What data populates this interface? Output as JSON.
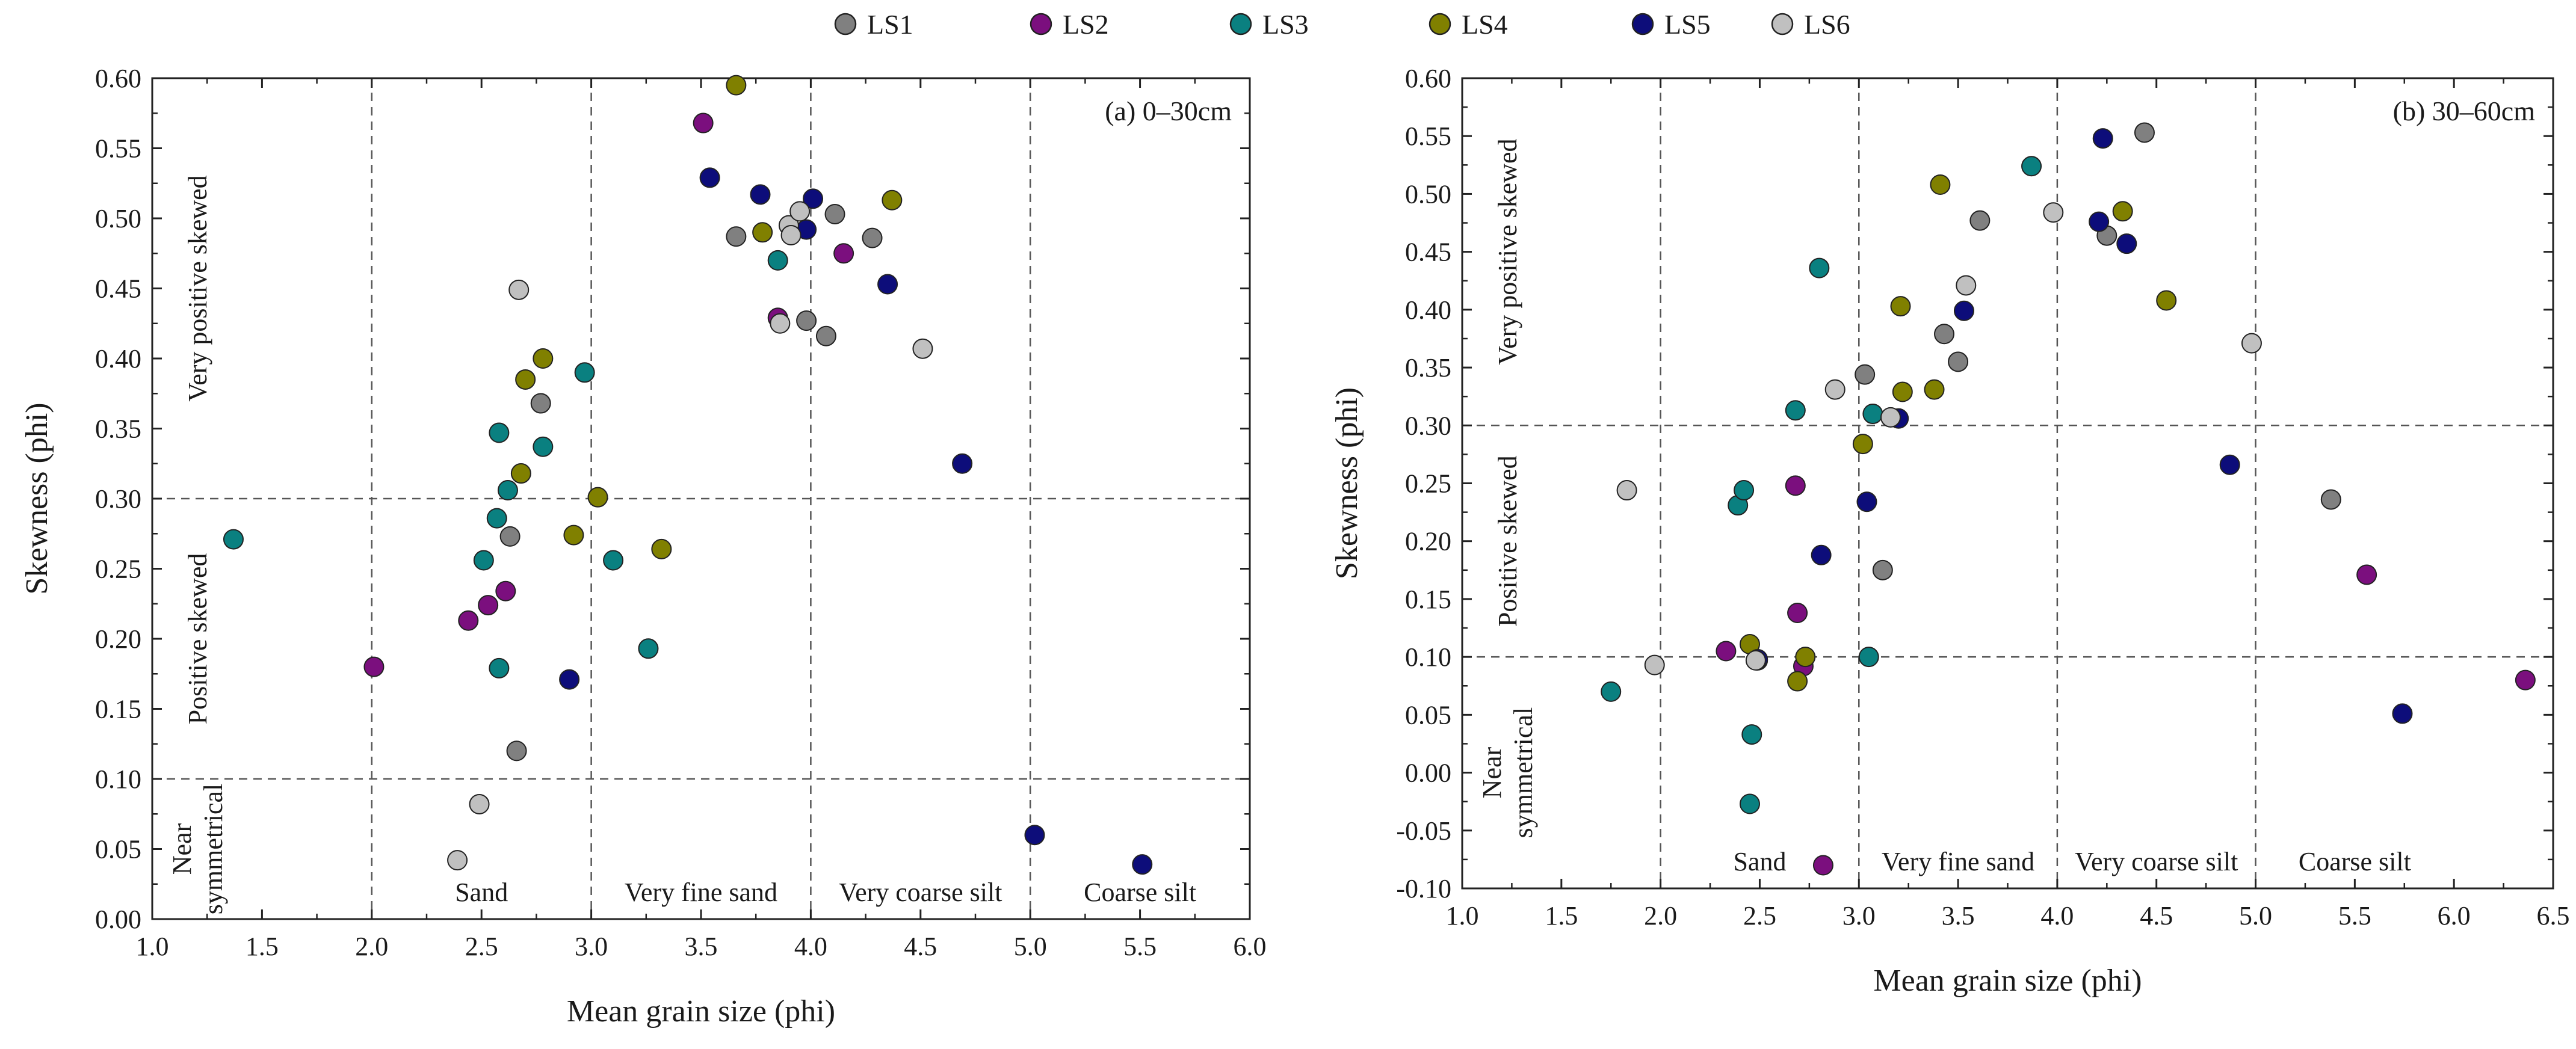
{
  "chart_data": {
    "type": "scatter",
    "legend": {
      "placement": "top-center",
      "entries": [
        {
          "name": "LS1",
          "color": "#808080"
        },
        {
          "name": "LS2",
          "color": "#7b0f7e"
        },
        {
          "name": "LS3",
          "color": "#0a8080"
        },
        {
          "name": "LS4",
          "color": "#808000"
        },
        {
          "name": "LS5",
          "color": "#0d0d7a"
        },
        {
          "name": "LS6",
          "color": "#c0c0c0"
        }
      ]
    },
    "panels": [
      {
        "id": "a",
        "label": "(a) 0–30cm",
        "xlabel": "Mean grain size (phi)",
        "ylabel": "Skewness (phi)",
        "xlim": [
          1.0,
          6.0
        ],
        "ylim": [
          0.0,
          0.6
        ],
        "xticks": [
          1.0,
          1.5,
          2.0,
          2.5,
          3.0,
          3.5,
          4.0,
          4.5,
          5.0,
          5.5,
          6.0
        ],
        "yticks": [
          0.0,
          0.05,
          0.1,
          0.15,
          0.2,
          0.25,
          0.3,
          0.35,
          0.4,
          0.45,
          0.5,
          0.55,
          0.6
        ],
        "x_tick_labels": [
          "1.0",
          "1.5",
          "2.0",
          "2.5",
          "3.0",
          "3.5",
          "4.0",
          "4.5",
          "5.0",
          "5.5",
          "6.0"
        ],
        "y_tick_labels": [
          "0.00",
          "0.05",
          "0.10",
          "0.15",
          "0.20",
          "0.25",
          "0.30",
          "0.35",
          "0.40",
          "0.45",
          "0.50",
          "0.55",
          "0.60"
        ],
        "vlines": [
          2.0,
          3.0,
          4.0,
          5.0
        ],
        "hlines": [
          0.1,
          0.3
        ],
        "x_region_labels": [
          {
            "text": "Sand",
            "x": 2.5
          },
          {
            "text": "Very fine sand",
            "x": 3.5
          },
          {
            "text": "Very coarse silt",
            "x": 4.5
          },
          {
            "text": "Coarse silt",
            "x": 5.5
          }
        ],
        "y_region_labels": [
          {
            "lines": [
              "Very positive skewed"
            ],
            "y": 0.45
          },
          {
            "lines": [
              "Positive skewed"
            ],
            "y": 0.2
          },
          {
            "lines": [
              "Near",
              "symmetrical"
            ],
            "y": 0.05
          }
        ],
        "series": [
          {
            "name": "LS1",
            "points": [
              [
                2.63,
                0.273
              ],
              [
                2.66,
                0.12
              ],
              [
                2.77,
                0.368
              ],
              [
                3.66,
                0.487
              ],
              [
                3.98,
                0.427
              ],
              [
                4.07,
                0.416
              ],
              [
                4.11,
                0.503
              ],
              [
                4.28,
                0.486
              ]
            ]
          },
          {
            "name": "LS2",
            "points": [
              [
                2.01,
                0.18
              ],
              [
                2.44,
                0.213
              ],
              [
                2.53,
                0.224
              ],
              [
                2.61,
                0.234
              ],
              [
                3.51,
                0.568
              ],
              [
                3.85,
                0.429
              ],
              [
                4.15,
                0.475
              ]
            ]
          },
          {
            "name": "LS3",
            "points": [
              [
                1.37,
                0.271
              ],
              [
                2.51,
                0.256
              ],
              [
                2.57,
                0.286
              ],
              [
                2.58,
                0.347
              ],
              [
                2.58,
                0.179
              ],
              [
                2.62,
                0.306
              ],
              [
                2.78,
                0.337
              ],
              [
                2.97,
                0.39
              ],
              [
                3.1,
                0.256
              ],
              [
                3.26,
                0.193
              ],
              [
                3.85,
                0.47
              ]
            ]
          },
          {
            "name": "LS4",
            "points": [
              [
                2.68,
                0.318
              ],
              [
                2.7,
                0.385
              ],
              [
                2.78,
                0.4
              ],
              [
                2.92,
                0.274
              ],
              [
                3.03,
                0.301
              ],
              [
                3.32,
                0.264
              ],
              [
                3.66,
                0.595
              ],
              [
                3.78,
                0.49
              ],
              [
                4.37,
                0.513
              ]
            ]
          },
          {
            "name": "LS5",
            "points": [
              [
                2.9,
                0.171
              ],
              [
                3.54,
                0.529
              ],
              [
                3.77,
                0.517
              ],
              [
                3.98,
                0.492
              ],
              [
                4.01,
                0.514
              ],
              [
                4.35,
                0.453
              ],
              [
                4.69,
                0.325
              ],
              [
                5.02,
                0.06
              ],
              [
                5.51,
                0.039
              ]
            ]
          },
          {
            "name": "LS6",
            "points": [
              [
                2.39,
                0.042
              ],
              [
                2.49,
                0.082
              ],
              [
                2.67,
                0.449
              ],
              [
                3.86,
                0.425
              ],
              [
                3.9,
                0.495
              ],
              [
                3.91,
                0.488
              ],
              [
                3.95,
                0.505
              ],
              [
                4.51,
                0.407
              ]
            ]
          }
        ]
      },
      {
        "id": "b",
        "label": "(b) 30–60cm",
        "xlabel": "Mean grain size (phi)",
        "ylabel": "Skewness (phi)",
        "xlim": [
          1.0,
          6.5
        ],
        "ylim": [
          -0.1,
          0.6
        ],
        "xticks": [
          1.0,
          1.5,
          2.0,
          2.5,
          3.0,
          3.5,
          4.0,
          4.5,
          5.0,
          5.5,
          6.0,
          6.5
        ],
        "yticks": [
          -0.1,
          -0.05,
          0.0,
          0.05,
          0.1,
          0.15,
          0.2,
          0.25,
          0.3,
          0.35,
          0.4,
          0.45,
          0.5,
          0.55,
          0.6
        ],
        "x_tick_labels": [
          "1.0",
          "1.5",
          "2.0",
          "2.5",
          "3.0",
          "3.5",
          "4.0",
          "4.5",
          "5.0",
          "5.5",
          "6.0",
          "6.5"
        ],
        "y_tick_labels": [
          "-0.10",
          "-0.05",
          "0.00",
          "0.05",
          "0.10",
          "0.15",
          "0.20",
          "0.25",
          "0.30",
          "0.35",
          "0.40",
          "0.45",
          "0.50",
          "0.55",
          "0.60"
        ],
        "vlines": [
          2.0,
          3.0,
          4.0,
          5.0
        ],
        "hlines": [
          -0.1,
          0.1,
          0.3
        ],
        "x_region_labels": [
          {
            "text": "Sand",
            "x": 2.5
          },
          {
            "text": "Very fine sand",
            "x": 3.5
          },
          {
            "text": "Very coarse silt",
            "x": 4.5
          },
          {
            "text": "Coarse silt",
            "x": 5.5
          }
        ],
        "y_region_labels": [
          {
            "lines": [
              "Very positive skewed"
            ],
            "y": 0.45
          },
          {
            "lines": [
              "Positive skewed"
            ],
            "y": 0.2
          },
          {
            "lines": [
              "Near",
              "symmetrical"
            ],
            "y": 0.0
          }
        ],
        "series": [
          {
            "name": "LS1",
            "points": [
              [
                3.03,
                0.344
              ],
              [
                3.12,
                0.175
              ],
              [
                3.43,
                0.379
              ],
              [
                3.5,
                0.355
              ],
              [
                3.61,
                0.477
              ],
              [
                4.25,
                0.464
              ],
              [
                4.44,
                0.553
              ],
              [
                5.38,
                0.236
              ]
            ]
          },
          {
            "name": "LS2",
            "points": [
              [
                2.33,
                0.105
              ],
              [
                2.68,
                0.248
              ],
              [
                2.69,
                0.138
              ],
              [
                2.72,
                0.092
              ],
              [
                2.82,
                -0.08
              ],
              [
                5.56,
                0.171
              ],
              [
                6.36,
                0.08
              ]
            ]
          },
          {
            "name": "LS3",
            "points": [
              [
                1.75,
                0.07
              ],
              [
                2.39,
                0.231
              ],
              [
                2.42,
                0.244
              ],
              [
                2.45,
                -0.027
              ],
              [
                2.46,
                0.033
              ],
              [
                2.49,
                0.097
              ],
              [
                2.68,
                0.313
              ],
              [
                2.8,
                0.436
              ],
              [
                3.05,
                0.1
              ],
              [
                3.07,
                0.31
              ],
              [
                3.87,
                0.524
              ]
            ]
          },
          {
            "name": "LS4",
            "points": [
              [
                2.45,
                0.111
              ],
              [
                2.69,
                0.079
              ],
              [
                2.73,
                0.1
              ],
              [
                3.02,
                0.284
              ],
              [
                3.22,
                0.329
              ],
              [
                3.21,
                0.403
              ],
              [
                3.38,
                0.331
              ],
              [
                3.41,
                0.508
              ],
              [
                4.33,
                0.485
              ],
              [
                4.55,
                0.408
              ]
            ]
          },
          {
            "name": "LS5",
            "points": [
              [
                2.49,
                0.098
              ],
              [
                2.81,
                0.188
              ],
              [
                3.04,
                0.234
              ],
              [
                3.2,
                0.306
              ],
              [
                3.53,
                0.399
              ],
              [
                4.21,
                0.476
              ],
              [
                4.23,
                0.548
              ],
              [
                4.35,
                0.457
              ],
              [
                4.87,
                0.266
              ],
              [
                5.74,
                0.051
              ]
            ]
          },
          {
            "name": "LS6",
            "points": [
              [
                1.83,
                0.244
              ],
              [
                1.97,
                0.093
              ],
              [
                2.48,
                0.097
              ],
              [
                2.88,
                0.331
              ],
              [
                3.16,
                0.307
              ],
              [
                3.54,
                0.421
              ],
              [
                3.98,
                0.484
              ],
              [
                4.98,
                0.371
              ]
            ]
          }
        ]
      }
    ]
  }
}
